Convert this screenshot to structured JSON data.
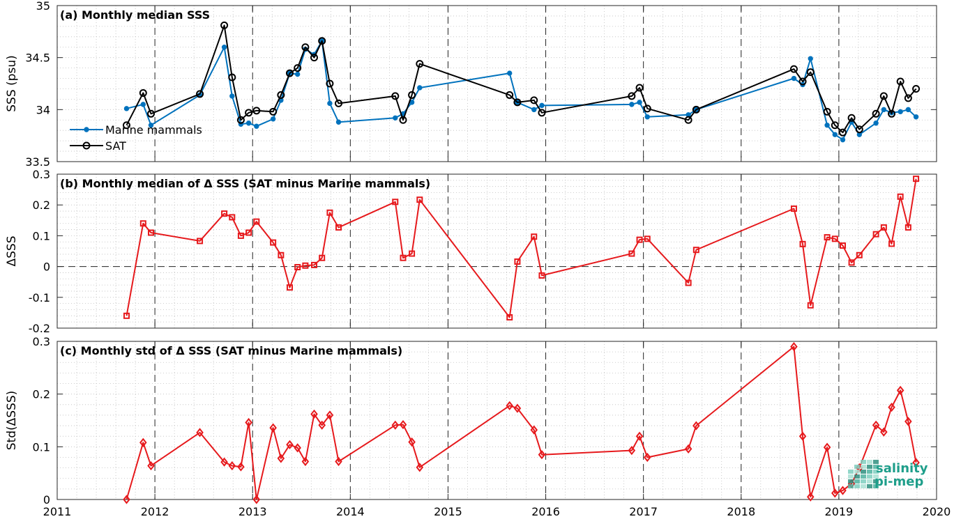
{
  "colors": {
    "marine_mammals": "#0072bd",
    "sat": "#000000",
    "delta": "#e6191c",
    "logo": "#1e9e8a"
  },
  "logo": {
    "line1": "salinity",
    "line2": "pi-mep"
  },
  "chart_data": [
    {
      "type": "line",
      "title": "(a) Monthly median SSS",
      "ylabel": "SSS (psu)",
      "xlim": [
        2011,
        2020
      ],
      "ylim": [
        33.5,
        35
      ],
      "yticks": [
        33.5,
        34,
        34.5,
        35
      ],
      "ytick_labels": [
        "33.5",
        "34",
        "34.5",
        "35"
      ],
      "xticks": [
        2011,
        2012,
        2013,
        2014,
        2015,
        2016,
        2017,
        2018,
        2019,
        2020
      ],
      "xtick_labels": [
        "2011",
        "2012",
        "2013",
        "2014",
        "2015",
        "2016",
        "2017",
        "2018",
        "2019",
        "2020"
      ],
      "legend_position": "lower-left",
      "series": [
        {
          "name": "Marine mammals",
          "marker": "dot",
          "x": [
            2011.71,
            2011.88,
            2011.96,
            2012.46,
            2012.71,
            2012.79,
            2012.88,
            2012.96,
            2013.04,
            2013.21,
            2013.29,
            2013.38,
            2013.46,
            2013.54,
            2013.63,
            2013.71,
            2013.79,
            2013.88,
            2014.46,
            2014.54,
            2014.63,
            2014.71,
            2015.63,
            2015.71,
            2015.88,
            2015.96,
            2016.88,
            2016.96,
            2017.04,
            2017.46,
            2017.54,
            2018.54,
            2018.63,
            2018.71,
            2018.88,
            2018.96,
            2019.04,
            2019.13,
            2019.21,
            2019.38,
            2019.46,
            2019.54,
            2019.63,
            2019.71,
            2019.79
          ],
          "y": [
            34.01,
            34.05,
            33.85,
            34.14,
            34.6,
            34.13,
            33.86,
            33.87,
            33.84,
            33.91,
            34.09,
            34.35,
            34.34,
            34.58,
            34.53,
            34.66,
            34.06,
            33.88,
            33.92,
            33.96,
            34.07,
            34.21,
            34.35,
            34.07,
            34.0,
            34.04,
            34.05,
            34.07,
            33.93,
            33.95,
            34.0,
            34.3,
            34.24,
            34.49,
            33.85,
            33.76,
            33.71,
            33.88,
            33.76,
            33.87,
            34.0,
            33.97,
            33.98,
            34.0,
            33.93
          ]
        },
        {
          "name": "SAT",
          "marker": "circle",
          "x": [
            2011.71,
            2011.88,
            2011.96,
            2012.46,
            2012.71,
            2012.79,
            2012.88,
            2012.96,
            2013.04,
            2013.21,
            2013.29,
            2013.38,
            2013.46,
            2013.54,
            2013.63,
            2013.71,
            2013.79,
            2013.88,
            2014.46,
            2014.54,
            2014.63,
            2014.71,
            2015.63,
            2015.71,
            2015.88,
            2015.96,
            2016.88,
            2016.96,
            2017.04,
            2017.46,
            2017.54,
            2018.54,
            2018.63,
            2018.71,
            2018.88,
            2018.96,
            2019.04,
            2019.13,
            2019.21,
            2019.38,
            2019.46,
            2019.54,
            2019.63,
            2019.71,
            2019.79
          ],
          "y": [
            33.85,
            34.16,
            33.96,
            34.15,
            34.81,
            34.31,
            33.9,
            33.97,
            33.99,
            33.98,
            34.14,
            34.35,
            34.4,
            34.6,
            34.5,
            34.66,
            34.25,
            34.06,
            34.13,
            33.9,
            34.14,
            34.44,
            34.14,
            34.07,
            34.09,
            33.97,
            34.13,
            34.21,
            34.01,
            33.9,
            34.0,
            34.39,
            34.27,
            34.36,
            33.98,
            33.85,
            33.78,
            33.92,
            33.81,
            33.96,
            34.13,
            33.96,
            34.27,
            34.11,
            34.2
          ]
        }
      ]
    },
    {
      "type": "line",
      "title": "(b) Monthly median of Δ SSS (SAT minus Marine mammals)",
      "ylabel": "ΔSSS",
      "xlim": [
        2011,
        2020
      ],
      "ylim": [
        -0.2,
        0.3
      ],
      "yticks": [
        -0.2,
        -0.1,
        0,
        0.1,
        0.2,
        0.3
      ],
      "ytick_labels": [
        "-0.2",
        "-0.1",
        "0",
        "0.1",
        "0.2",
        "0.3"
      ],
      "xticks": [
        2011,
        2012,
        2013,
        2014,
        2015,
        2016,
        2017,
        2018,
        2019,
        2020
      ],
      "zero_line": true,
      "series": [
        {
          "marker": "square",
          "x": [
            2011.71,
            2011.88,
            2011.96,
            2012.46,
            2012.71,
            2012.79,
            2012.88,
            2012.96,
            2013.04,
            2013.21,
            2013.29,
            2013.38,
            2013.46,
            2013.54,
            2013.63,
            2013.71,
            2013.79,
            2013.88,
            2014.46,
            2014.54,
            2014.63,
            2014.71,
            2015.63,
            2015.71,
            2015.88,
            2015.96,
            2016.88,
            2016.96,
            2017.04,
            2017.46,
            2017.54,
            2018.54,
            2018.63,
            2018.71,
            2018.88,
            2018.96,
            2019.04,
            2019.13,
            2019.21,
            2019.38,
            2019.46,
            2019.54,
            2019.63,
            2019.71,
            2019.79
          ],
          "y": [
            -0.16,
            0.14,
            0.11,
            0.083,
            0.172,
            0.16,
            0.1,
            0.11,
            0.146,
            0.078,
            0.037,
            -0.068,
            -0.002,
            0.003,
            0.005,
            0.028,
            0.175,
            0.127,
            0.21,
            0.028,
            0.042,
            0.217,
            -0.165,
            0.016,
            0.097,
            -0.029,
            0.042,
            0.087,
            0.09,
            -0.053,
            0.054,
            0.188,
            0.073,
            -0.126,
            0.095,
            0.09,
            0.068,
            0.013,
            0.037,
            0.105,
            0.127,
            0.074,
            0.227,
            0.127,
            0.285
          ]
        }
      ]
    },
    {
      "type": "line",
      "title": "(c) Monthly std of Δ SSS (SAT minus Marine mammals)",
      "ylabel": "Std(ΔSSS)",
      "xlim": [
        2011,
        2020
      ],
      "ylim": [
        0,
        0.3
      ],
      "yticks": [
        0,
        0.1,
        0.2,
        0.3
      ],
      "ytick_labels": [
        "0",
        "0.1",
        "0.2",
        "0.3"
      ],
      "xticks": [
        2011,
        2012,
        2013,
        2014,
        2015,
        2016,
        2017,
        2018,
        2019,
        2020
      ],
      "xtick_labels": [
        "2011",
        "2012",
        "2013",
        "2014",
        "2015",
        "2016",
        "2017",
        "2018",
        "2019",
        "2020"
      ],
      "series": [
        {
          "marker": "diamond",
          "x": [
            2011.71,
            2011.88,
            2011.96,
            2012.46,
            2012.71,
            2012.79,
            2012.88,
            2012.96,
            2013.04,
            2013.21,
            2013.29,
            2013.38,
            2013.46,
            2013.54,
            2013.63,
            2013.71,
            2013.79,
            2013.88,
            2014.46,
            2014.54,
            2014.63,
            2014.71,
            2015.63,
            2015.71,
            2015.88,
            2015.96,
            2016.88,
            2016.96,
            2017.04,
            2017.46,
            2017.54,
            2018.54,
            2018.63,
            2018.71,
            2018.88,
            2018.96,
            2019.04,
            2019.13,
            2019.21,
            2019.38,
            2019.46,
            2019.54,
            2019.63,
            2019.71,
            2019.79
          ],
          "y": [
            0.0,
            0.108,
            0.064,
            0.127,
            0.071,
            0.064,
            0.062,
            0.146,
            0.0,
            0.136,
            0.078,
            0.104,
            0.098,
            0.072,
            0.162,
            0.141,
            0.16,
            0.072,
            0.141,
            0.142,
            0.109,
            0.061,
            0.178,
            0.173,
            0.132,
            0.085,
            0.093,
            0.12,
            0.08,
            0.096,
            0.14,
            0.29,
            0.12,
            0.005,
            0.099,
            0.012,
            0.017,
            0.03,
            0.06,
            0.141,
            0.128,
            0.175,
            0.207,
            0.148,
            0.07
          ]
        }
      ]
    }
  ]
}
